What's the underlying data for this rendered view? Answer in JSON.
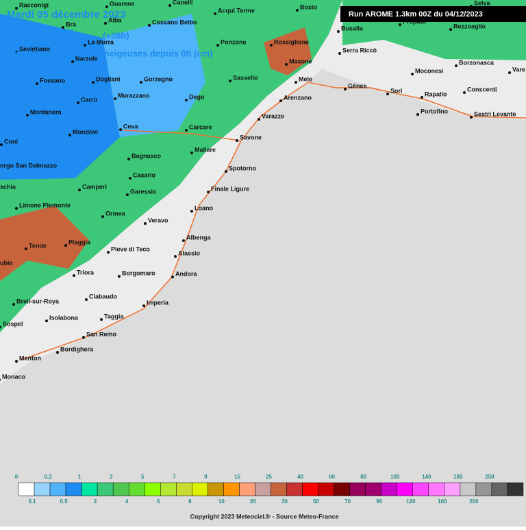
{
  "header": {
    "date": "Mardi 05 décembre 2023",
    "time": "15:00 locale",
    "lead": "(+38h)",
    "product": "Cumul de précipitations neigeuses depuis 0h (cm)",
    "run": "Run AROME 1.3km 00Z du 04/12/2023"
  },
  "cities": [
    "Racconigi",
    "Guarene",
    "Canelli",
    "Acqui Terme",
    "Bosio",
    "Selva",
    "Bra",
    "Alba",
    "Cossano Belbo",
    "Propata",
    "Rezzoaglio",
    "Busalla",
    "Savigliano",
    "La Morra",
    "Ponzone",
    "Rossiglione",
    "Serra Riccò",
    "Narzole",
    "Masone",
    "Borzonasca",
    "Vare",
    "Moconesi",
    "Fossano",
    "Dogliani",
    "Gorzegno",
    "Sassello",
    "Mele",
    "Gênes",
    "Sori",
    "Rapallo",
    "Conscenti",
    "Carrù",
    "Murazzano",
    "Dego",
    "Arenzano",
    "Montanera",
    "Portofino",
    "Sestri Levante",
    "Varazze",
    "Ceva",
    "Mondovi",
    "Carcare",
    "Savone",
    "Coni",
    "Mallare",
    "Bagnasco",
    "orgo San Dalmazzo",
    "Spotorno",
    "Casario",
    "schia",
    "Camperi",
    "Finale Ligure",
    "Garessio",
    "Limone Piemonte",
    "Loano",
    "Ormea",
    "Veravo",
    "Albenga",
    "Piaggia",
    "Tende",
    "Pieve di Teco",
    "Alassio",
    "ubie",
    "Triora",
    "Borgomaro",
    "Andora",
    "Ciabaudo",
    "Breil-sur-Roya",
    "Imperia",
    "Isolabona",
    "Taggia",
    "Sospel",
    "San Remo",
    "Bordighera",
    "Menton",
    "Monaco"
  ],
  "legend": {
    "top_labels": [
      "0",
      "0.2",
      "1",
      "3",
      "5",
      "7",
      "9",
      "15",
      "25",
      "40",
      "60",
      "80",
      "100",
      "140",
      "180",
      "250"
    ],
    "bottom_labels": [
      "0.1",
      "0.5",
      "2",
      "4",
      "6",
      "8",
      "10",
      "20",
      "30",
      "50",
      "70",
      "90",
      "120",
      "160",
      "200"
    ],
    "colors": [
      "#ffffff",
      "#96d2fa",
      "#50b4fa",
      "#1e8cf0",
      "#00e6a0",
      "#3cc878",
      "#50c850",
      "#64dc32",
      "#8cff00",
      "#b4e632",
      "#c8dc32",
      "#dcf000",
      "#c89600",
      "#ff9600",
      "#ffa078",
      "#c8a0a0",
      "#c8643c",
      "#c83232",
      "#ff0000",
      "#c80000",
      "#780000",
      "#96005a",
      "#a0006e",
      "#c800c8",
      "#ff00ff",
      "#ff46ff",
      "#ff78ff",
      "#ffa0ff",
      "#c8c8c8",
      "#969696",
      "#646464",
      "#323232"
    ]
  },
  "footer": {
    "copyright": "Copyright 2023 Meteociel.fr - Source Meteo-France"
  }
}
